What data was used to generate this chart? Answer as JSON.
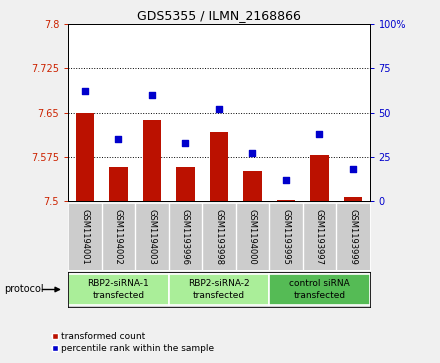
{
  "title": "GDS5355 / ILMN_2168866",
  "samples": [
    "GSM1194001",
    "GSM1194002",
    "GSM1194003",
    "GSM1193996",
    "GSM1193998",
    "GSM1194000",
    "GSM1193995",
    "GSM1193997",
    "GSM1193999"
  ],
  "red_values": [
    7.65,
    7.558,
    7.638,
    7.558,
    7.618,
    7.552,
    7.503,
    7.578,
    7.508
  ],
  "blue_values": [
    62,
    35,
    60,
    33,
    52,
    27,
    12,
    38,
    18
  ],
  "ylim_left": [
    7.5,
    7.8
  ],
  "ylim_right": [
    0,
    100
  ],
  "yticks_left": [
    7.5,
    7.575,
    7.65,
    7.725,
    7.8
  ],
  "yticks_right": [
    0,
    25,
    50,
    75,
    100
  ],
  "ytick_labels_left": [
    "7.5",
    "7.575",
    "7.65",
    "7.725",
    "7.8"
  ],
  "ytick_labels_right": [
    "0",
    "25",
    "50",
    "75",
    "100%"
  ],
  "hlines": [
    7.575,
    7.65,
    7.725
  ],
  "groups": [
    {
      "label": "RBP2-siRNA-1\ntransfected",
      "indices": [
        0,
        1,
        2
      ],
      "color": "#aaee99"
    },
    {
      "label": "RBP2-siRNA-2\ntransfected",
      "indices": [
        3,
        4,
        5
      ],
      "color": "#aaee99"
    },
    {
      "label": "control siRNA\ntransfected",
      "indices": [
        6,
        7,
        8
      ],
      "color": "#55bb55"
    }
  ],
  "bar_color": "#bb1100",
  "dot_color": "#0000cc",
  "bar_width": 0.55,
  "bar_bottom": 7.5,
  "protocol_label": "protocol",
  "legend_red": "transformed count",
  "legend_blue": "percentile rank within the sample",
  "fig_bg": "#f0f0f0",
  "plot_bg": "#ffffff",
  "label_panel_bg": "#cccccc",
  "group_panel_bg": "#cccccc"
}
